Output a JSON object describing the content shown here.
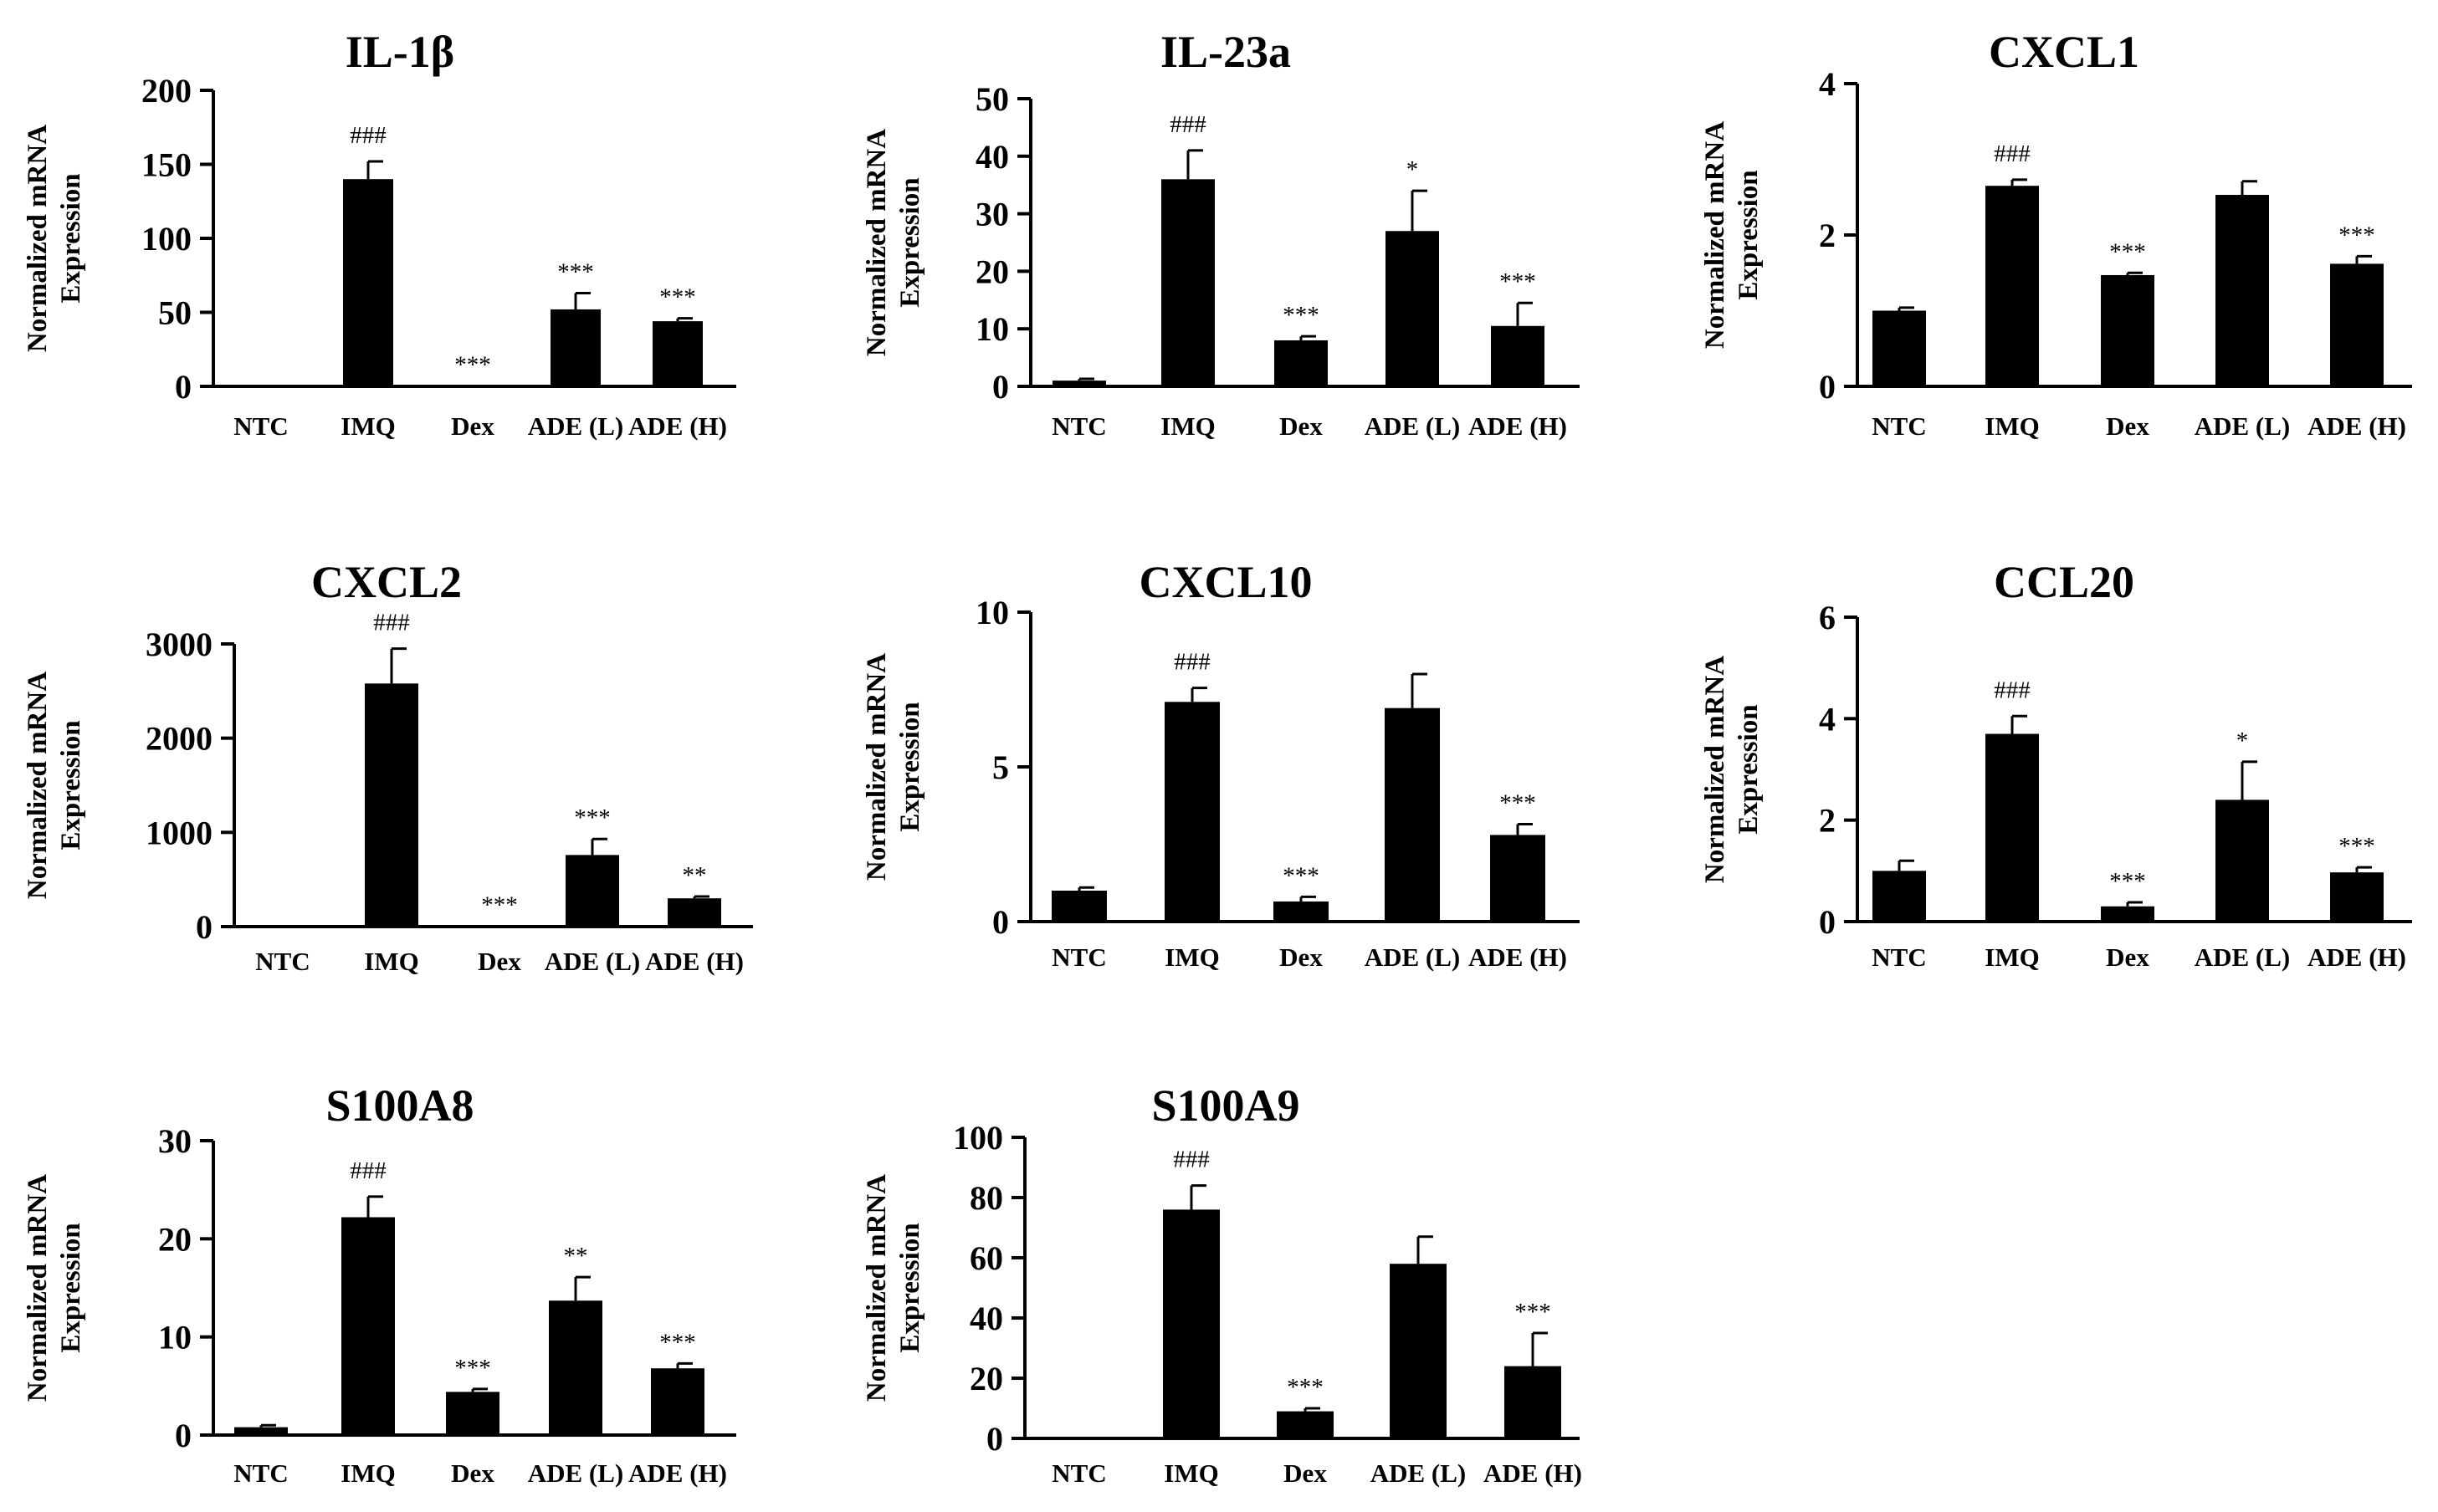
{
  "chart_data": [
    {
      "type": "bar",
      "title": "IL-1β",
      "ylabel": [
        "Normalized mRNA",
        "Expression"
      ],
      "categories": [
        "NTC",
        "IMQ",
        "Dex",
        "ADE (L)",
        "ADE (H)"
      ],
      "values": [
        0.5,
        140,
        0.3,
        52,
        44
      ],
      "errors": [
        0.2,
        12,
        0.1,
        11,
        2
      ],
      "annotations": [
        "",
        "###",
        "***",
        "***",
        "***"
      ],
      "yticks": [
        0,
        50,
        100,
        150,
        200
      ],
      "ylim": [
        0,
        200
      ]
    },
    {
      "type": "bar",
      "title": "IL-23a",
      "ylabel": [
        "Normalized mRNA",
        "Expression"
      ],
      "categories": [
        "NTC",
        "IMQ",
        "Dex",
        "ADE (L)",
        "ADE (H)"
      ],
      "values": [
        1,
        36,
        8,
        27,
        10.5
      ],
      "errors": [
        0.3,
        5,
        0.7,
        7,
        4
      ],
      "annotations": [
        "",
        "###",
        "***",
        "*",
        "***"
      ],
      "yticks": [
        0,
        10,
        20,
        30,
        40,
        50
      ],
      "ylim": [
        0,
        50
      ]
    },
    {
      "type": "bar",
      "title": "CXCL1",
      "ylabel": [
        "Normalized mRNA",
        "Expression"
      ],
      "categories": [
        "NTC",
        "IMQ",
        "Dex",
        "ADE (L)",
        "ADE (H)"
      ],
      "values": [
        1.0,
        2.65,
        1.47,
        2.53,
        1.62
      ],
      "errors": [
        0.04,
        0.08,
        0.03,
        0.18,
        0.1
      ],
      "annotations": [
        "",
        "###",
        "***",
        "",
        "***"
      ],
      "yticks": [
        0,
        2,
        4
      ],
      "ylim": [
        0,
        4
      ]
    },
    {
      "type": "bar",
      "title": "CXCL2",
      "ylabel": [
        "Normalized mRNA",
        "Expression"
      ],
      "categories": [
        "NTC",
        "IMQ",
        "Dex",
        "ADE  (L)",
        "ADE (H)"
      ],
      "values": [
        3,
        2580,
        3,
        760,
        300
      ],
      "errors": [
        1,
        370,
        1,
        170,
        20
      ],
      "annotations": [
        "",
        "###",
        "***",
        "***",
        "**"
      ],
      "yticks": [
        0,
        1000,
        2000,
        3000
      ],
      "ylim": [
        0,
        3000
      ]
    },
    {
      "type": "bar",
      "title": "CXCL10",
      "ylabel": [
        "Normalized mRNA",
        "Expression"
      ],
      "categories": [
        "NTC",
        "IMQ",
        "Dex",
        "ADE (L)",
        "ADE (H)"
      ],
      "values": [
        1.0,
        7.1,
        0.65,
        6.9,
        2.8
      ],
      "errors": [
        0.1,
        0.45,
        0.15,
        1.1,
        0.35
      ],
      "annotations": [
        "",
        "###",
        "***",
        "",
        "***"
      ],
      "yticks": [
        0,
        5,
        10
      ],
      "ylim": [
        0,
        10
      ]
    },
    {
      "type": "bar",
      "title": "CCL20",
      "ylabel": [
        "Normalized mRNA",
        "Expression"
      ],
      "categories": [
        "NTC",
        "IMQ",
        "Dex",
        "ADE (L)",
        "ADE (H)"
      ],
      "values": [
        1.0,
        3.7,
        0.3,
        2.4,
        0.97
      ],
      "errors": [
        0.2,
        0.35,
        0.08,
        0.75,
        0.1
      ],
      "annotations": [
        "",
        "###",
        "***",
        "*",
        "***"
      ],
      "yticks": [
        0,
        2,
        4,
        6
      ],
      "ylim": [
        0,
        6
      ]
    },
    {
      "type": "bar",
      "title": "S100A8",
      "ylabel": [
        "Normalized mRNA",
        "Expression"
      ],
      "categories": [
        "NTC",
        "IMQ",
        "Dex",
        "ADE (L)",
        "ADE (H)"
      ],
      "values": [
        0.8,
        22.2,
        4.4,
        13.7,
        6.8
      ],
      "errors": [
        0.2,
        2.1,
        0.3,
        2.4,
        0.5
      ],
      "annotations": [
        "",
        "###",
        "***",
        "**",
        "***"
      ],
      "yticks": [
        0,
        10,
        20,
        30
      ],
      "ylim": [
        0,
        30
      ]
    },
    {
      "type": "bar",
      "title": "S100A9",
      "ylabel": [
        "Normalized mRNA",
        "Expression"
      ],
      "categories": [
        "NTC",
        "IMQ",
        "Dex",
        "ADE (L)",
        "ADE (H)"
      ],
      "values": [
        0.3,
        76,
        9,
        58,
        24
      ],
      "errors": [
        0.1,
        8,
        1,
        9,
        11
      ],
      "annotations": [
        "",
        "###",
        "***",
        "",
        "***"
      ],
      "yticks": [
        0,
        20,
        40,
        60,
        80,
        100
      ],
      "ylim": [
        0,
        100
      ]
    }
  ]
}
